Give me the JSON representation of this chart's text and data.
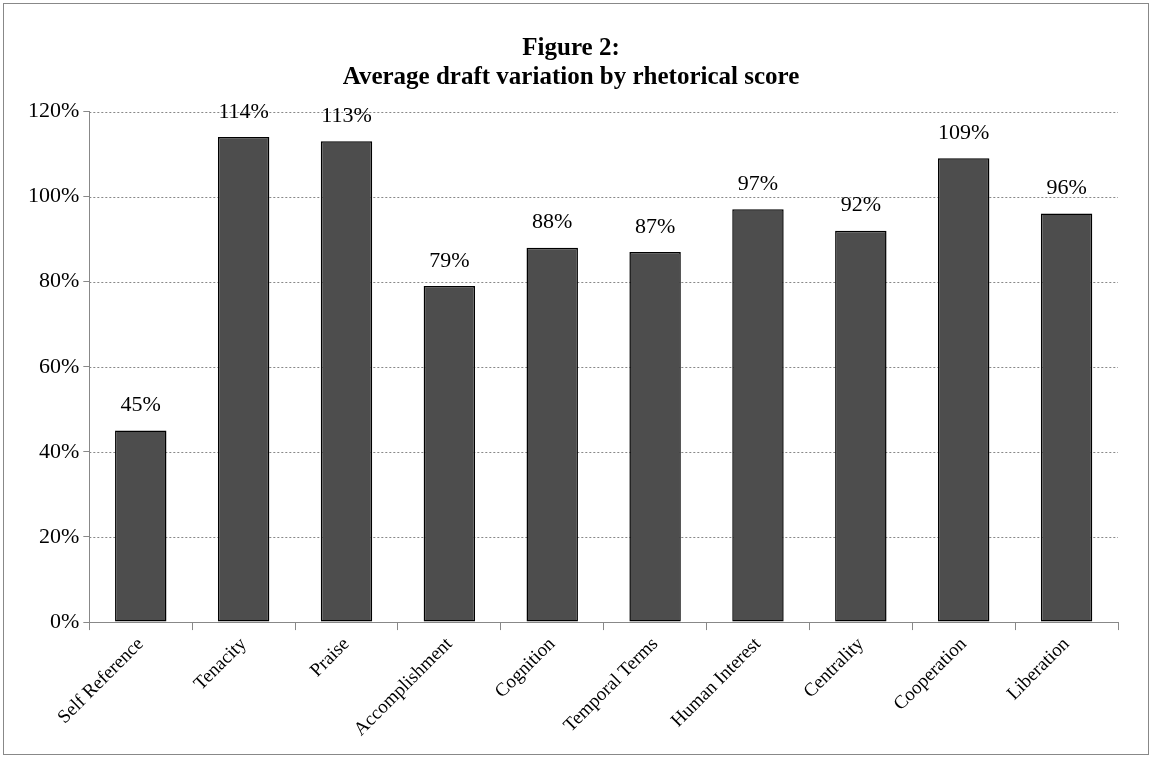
{
  "chart_data": {
    "type": "bar",
    "title": "Figure 2:",
    "subtitle": "Average draft variation by rhetorical score",
    "categories": [
      "Self Reference",
      "Tenacity",
      "Praise",
      "Accomplishment",
      "Cognition",
      "Temporal Terms",
      "Human Interest",
      "Centrality",
      "Cooperation",
      "Liberation"
    ],
    "values": [
      45,
      114,
      113,
      79,
      88,
      87,
      97,
      92,
      109,
      96
    ],
    "value_labels": [
      "45%",
      "114%",
      "113%",
      "79%",
      "88%",
      "87%",
      "97%",
      "92%",
      "109%",
      "96%"
    ],
    "color": "#4d4d4d",
    "ylim": [
      0,
      120
    ],
    "yticks": [
      {
        "value": 0,
        "label": "0%"
      },
      {
        "value": 20,
        "label": "20%"
      },
      {
        "value": 40,
        "label": "40%"
      },
      {
        "value": 60,
        "label": "60%"
      },
      {
        "value": 80,
        "label": "80%"
      },
      {
        "value": 100,
        "label": "100%"
      },
      {
        "value": 120,
        "label": "120%"
      }
    ],
    "grid": "y",
    "legend": false
  }
}
